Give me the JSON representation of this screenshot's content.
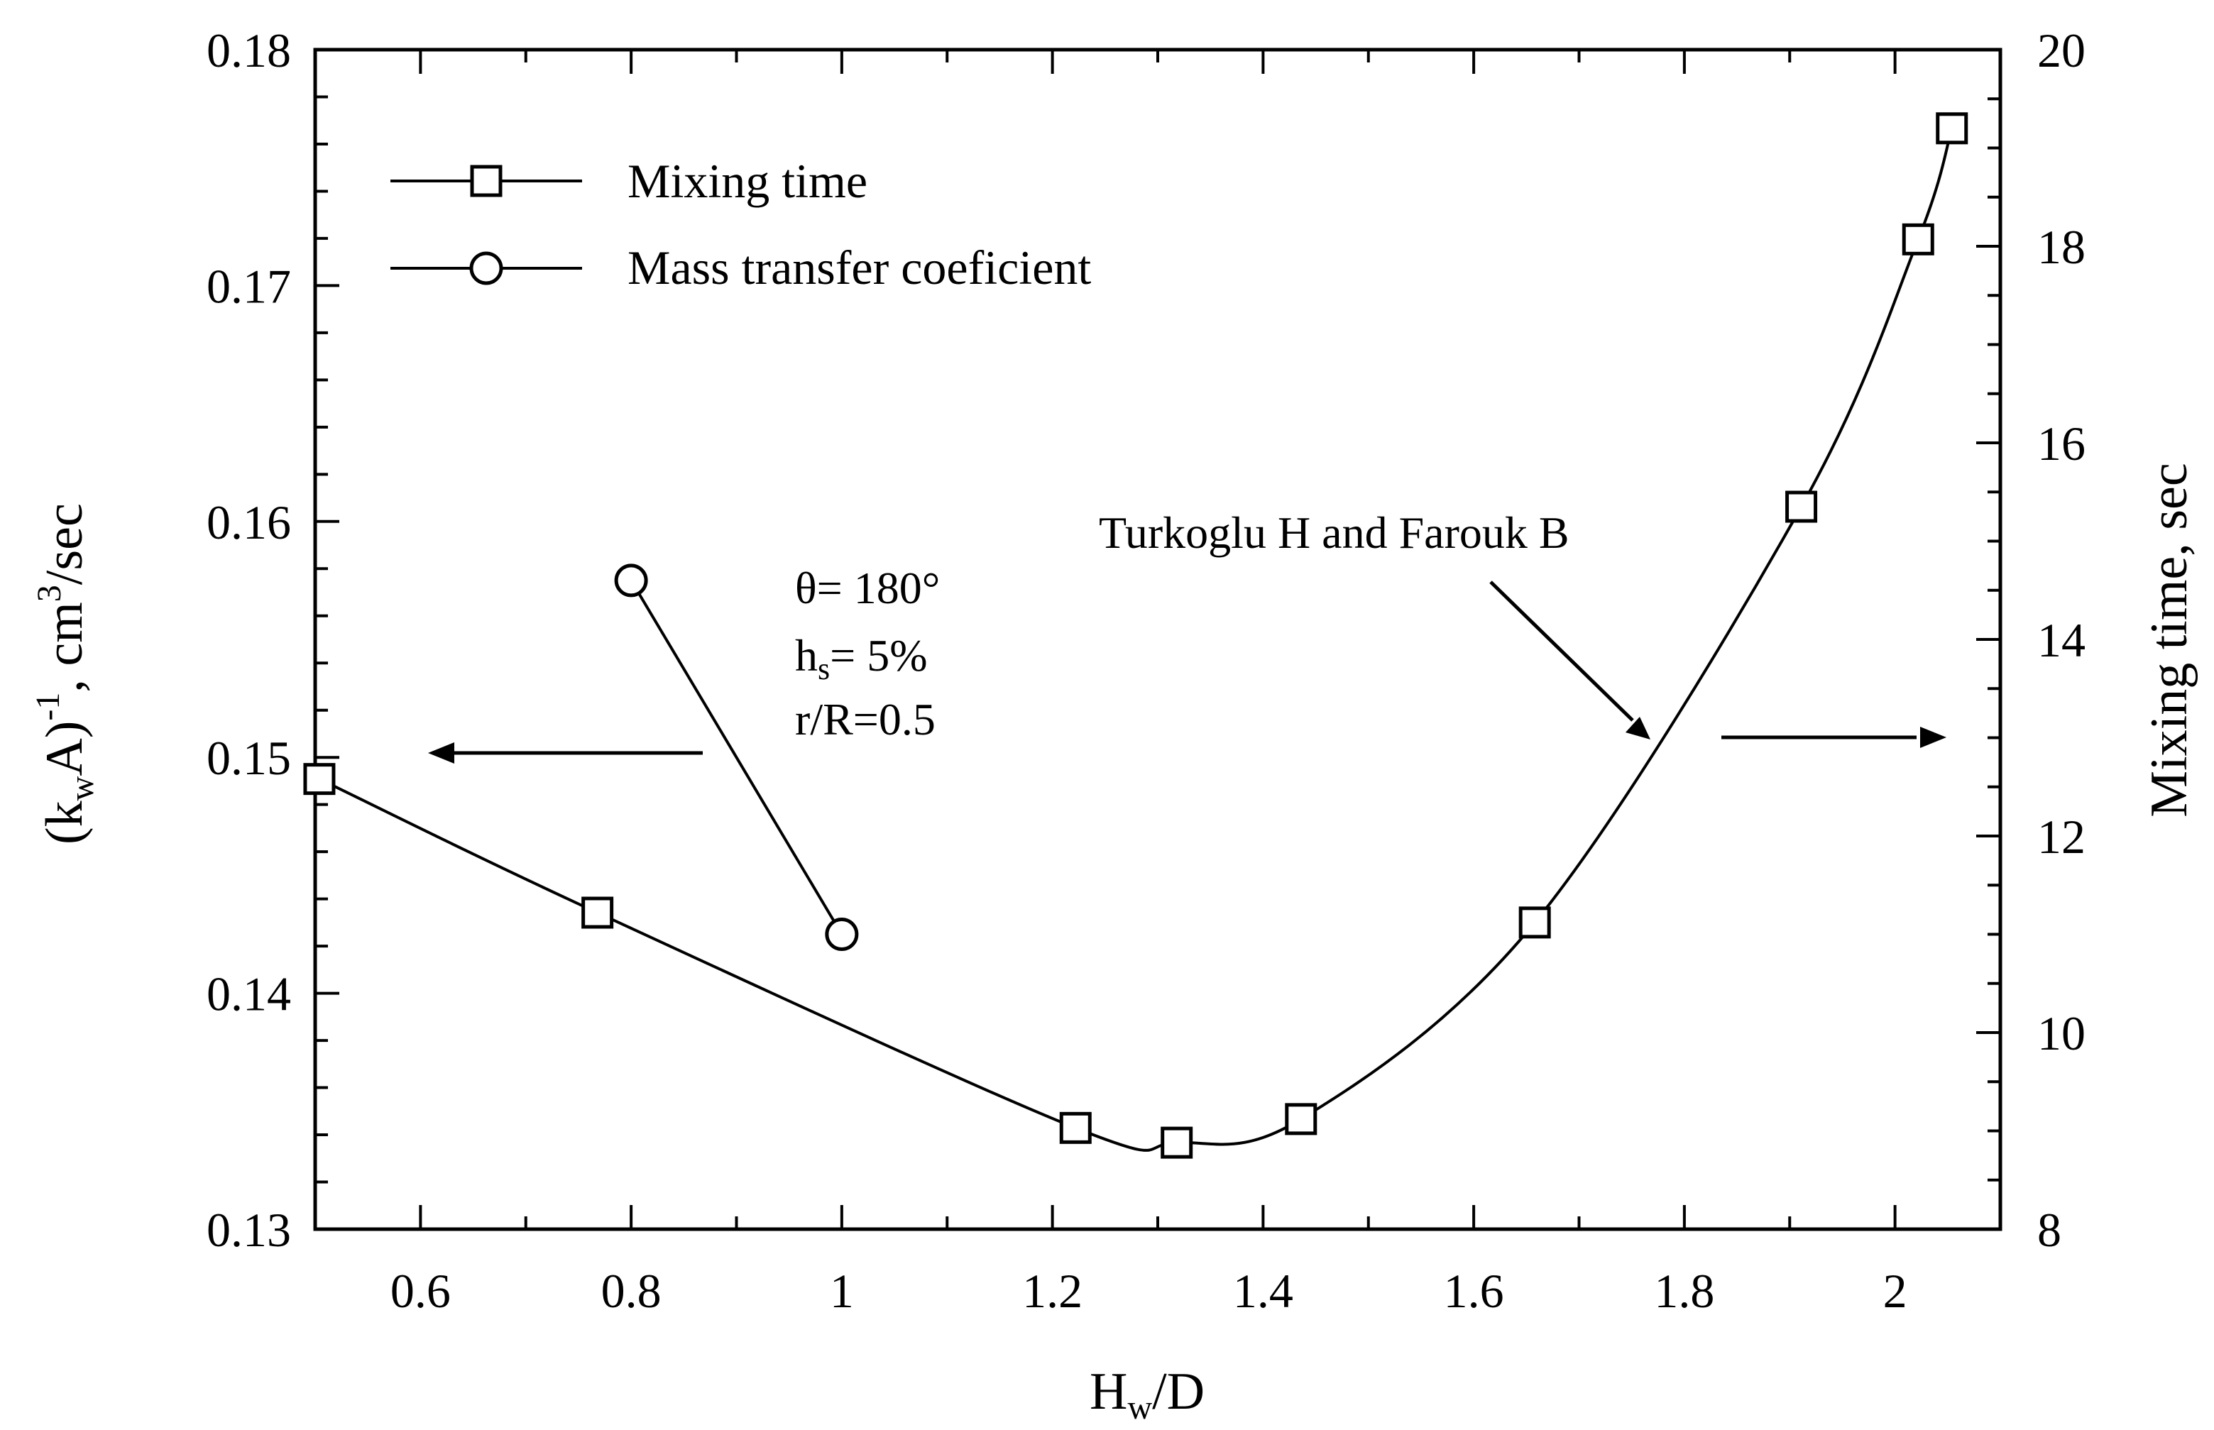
{
  "chart_data": {
    "type": "line",
    "x": {
      "label_main": "H",
      "label_sub": "w",
      "label_tail": "/D",
      "range": [
        0.5,
        2.1
      ],
      "ticks": [
        0.6,
        0.8,
        1.0,
        1.2,
        1.4,
        1.6,
        1.8,
        2.0
      ],
      "tick_labels": [
        "0.6",
        "0.8",
        "1",
        "1.2",
        "1.4",
        "1.6",
        "1.8",
        "2"
      ]
    },
    "y_left": {
      "label_open": "(k",
      "label_sub": "w",
      "label_mid": "A)",
      "label_sup": "-1",
      "label_after": ", cm",
      "label_sup2": "3",
      "label_end": "/sec",
      "range": [
        0.13,
        0.18
      ],
      "ticks": [
        0.13,
        0.14,
        0.15,
        0.16,
        0.17,
        0.18
      ],
      "tick_labels": [
        "0.13",
        "0.14",
        "0.15",
        "0.16",
        "0.17",
        "0.18"
      ]
    },
    "y_right": {
      "label": "Mixing time, sec",
      "range": [
        8,
        20
      ],
      "ticks": [
        8,
        10,
        12,
        14,
        16,
        18,
        20
      ],
      "tick_labels": [
        "8",
        "10",
        "12",
        "14",
        "16",
        "18",
        "20"
      ]
    },
    "series": [
      {
        "name": "Mixing time",
        "axis": "right",
        "marker": "square",
        "x": [
          0.504,
          0.768,
          1.222,
          1.318,
          1.436,
          1.658,
          1.911,
          2.022,
          2.054
        ],
        "y": [
          12.58,
          11.22,
          9.03,
          8.88,
          9.12,
          11.12,
          15.35,
          18.07,
          19.2
        ]
      },
      {
        "name": "Mass transfer coeficient",
        "axis": "left",
        "marker": "circle",
        "x": [
          0.8,
          1.0
        ],
        "y": [
          0.1575,
          0.1425
        ]
      }
    ],
    "annotations": {
      "conditions": [
        "θ= 180°",
        "h",
        "s",
        "= 5%",
        "r/R=0.5"
      ],
      "source": "Turkoglu H and Farouk B"
    }
  }
}
